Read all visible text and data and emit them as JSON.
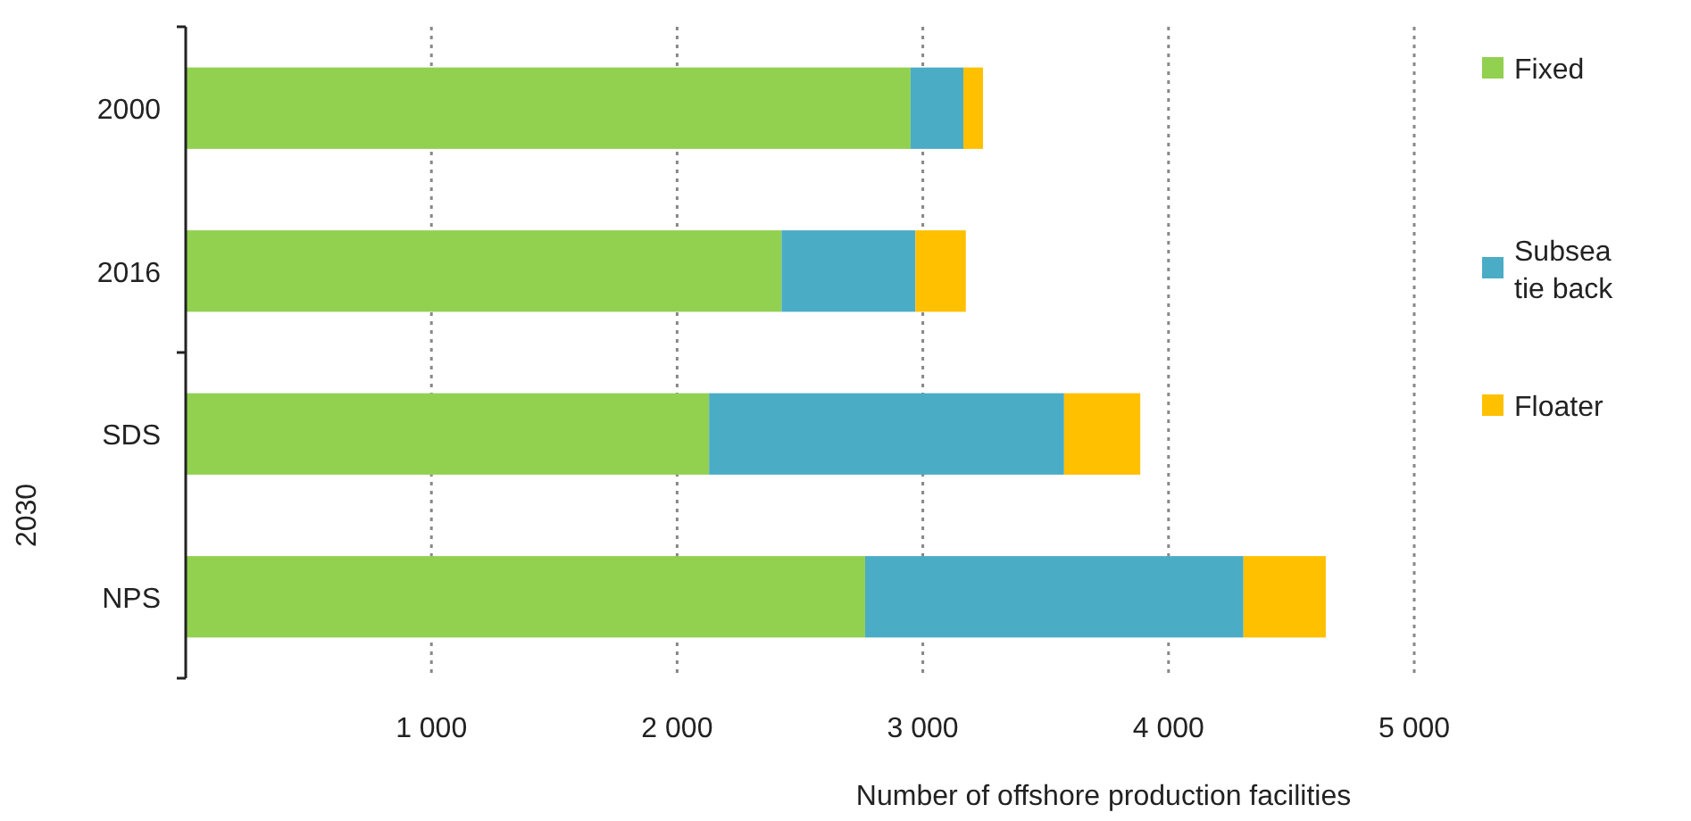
{
  "chart_data": {
    "type": "bar",
    "orientation": "horizontal",
    "stacked": true,
    "categories": [
      "2000",
      "2016",
      "SDS",
      "NPS"
    ],
    "series": [
      {
        "name": "Fixed",
        "color": "#92d050",
        "values": [
          2950,
          2425,
          2130,
          2765
        ]
      },
      {
        "name": "Subsea tie back",
        "color": "#4bacc6",
        "values": [
          215,
          545,
          1445,
          1540
        ]
      },
      {
        "name": "Floater",
        "color": "#ffc000",
        "values": [
          80,
          205,
          310,
          335
        ]
      }
    ],
    "xlim": [
      0,
      5000
    ],
    "xticks": [
      {
        "value": 1000,
        "label": "1 000"
      },
      {
        "value": 2000,
        "label": "2 000"
      },
      {
        "value": 3000,
        "label": "3 000"
      },
      {
        "value": 4000,
        "label": "4 000"
      },
      {
        "value": 5000,
        "label": "5 000"
      }
    ],
    "xlabel": "Number of offshore production facilities",
    "annotations": [
      "2030"
    ],
    "grid": "x",
    "legend": "right"
  }
}
